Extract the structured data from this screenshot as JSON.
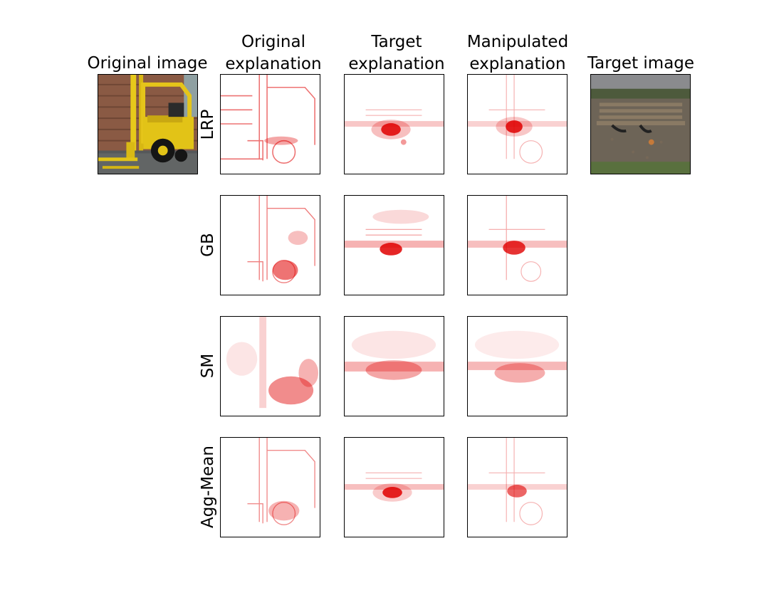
{
  "figure": {
    "column_titles": {
      "original_image": "Original image",
      "original_explanation": "Original\nexplanation",
      "target_explanation": "Target\nexplanation",
      "manipulated_explanation": "Manipulated\nexplanation",
      "target_image": "Target image"
    },
    "row_labels": {
      "lrp": "LRP",
      "gb": "GB",
      "sm": "SM",
      "agg_mean": "Agg-Mean"
    },
    "images": {
      "original": "photo of a yellow forklift in front of a brown wooden wall",
      "target": "photo of a wooden park bench on a gravel path"
    },
    "heatmap_color": "#e00000"
  }
}
